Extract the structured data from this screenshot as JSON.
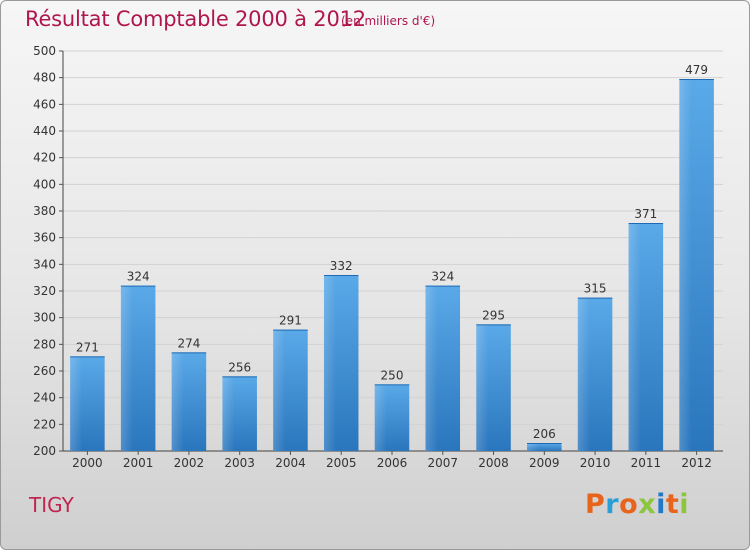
{
  "header": {
    "title": "Résultat Comptable 2000 à 2012",
    "subtitle": "(en milliers d'€)"
  },
  "footer": {
    "commune": "TIGY",
    "logo_text": "Proxiti",
    "logo_colors": [
      "#e8641c",
      "#2a9fd6",
      "#e8641c",
      "#8cc63f",
      "#1f78c8",
      "#e8641c",
      "#8cc63f"
    ]
  },
  "chart_data": {
    "type": "bar",
    "title": "Résultat Comptable 2000 à 2012",
    "subtitle": "(en milliers d'€)",
    "categories": [
      "2000",
      "2001",
      "2002",
      "2003",
      "2004",
      "2005",
      "2006",
      "2007",
      "2008",
      "2009",
      "2010",
      "2011",
      "2012"
    ],
    "values": [
      271,
      324,
      274,
      256,
      291,
      332,
      250,
      324,
      295,
      206,
      315,
      371,
      479
    ],
    "xlabel": "",
    "ylabel": "",
    "ylim": [
      200,
      500
    ],
    "yticks": [
      200,
      220,
      240,
      260,
      280,
      300,
      320,
      340,
      360,
      380,
      400,
      420,
      440,
      460,
      480,
      500
    ],
    "grid": true,
    "bar_color": "#3b8fd6",
    "title_color": "#b0164e"
  }
}
